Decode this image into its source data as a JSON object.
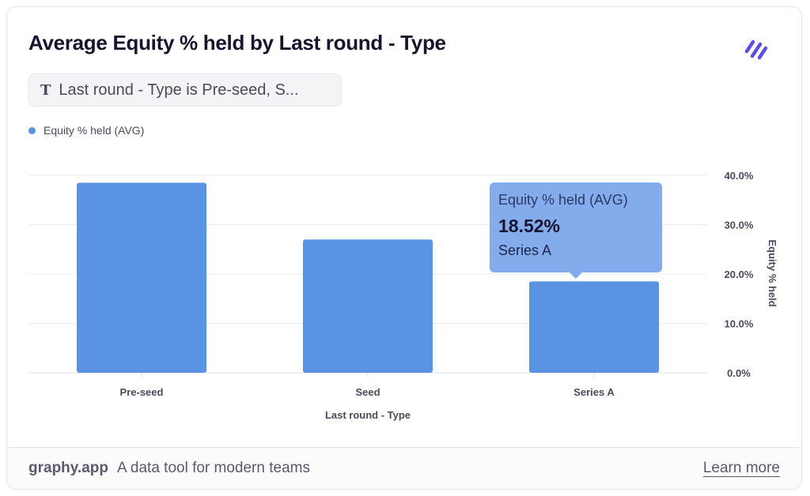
{
  "header": {
    "title": "Average Equity % held by Last round - Type"
  },
  "filter": {
    "icon": "text-type-icon",
    "icon_glyph": "T",
    "label": "Last round - Type is Pre-seed, S..."
  },
  "legend": {
    "label": "Equity % held (AVG)",
    "color": "#5b93e3"
  },
  "tooltip": {
    "series": "Equity % held (AVG)",
    "value": "18.52%",
    "category": "Series A"
  },
  "chart_data": {
    "type": "bar",
    "categories": [
      "Pre-seed",
      "Seed",
      "Series A"
    ],
    "series": [
      {
        "name": "Equity % held (AVG)",
        "values": [
          38.5,
          27.0,
          18.52
        ],
        "color": "#5b93e3"
      }
    ],
    "xlabel": "Last round - Type",
    "ylabel": "Equity % held",
    "ylim": [
      0,
      40
    ],
    "yticks": [
      "0.0%",
      "10.0%",
      "20.0%",
      "30.0%",
      "40.0%"
    ],
    "ytick_values": [
      0,
      10,
      20,
      30,
      40
    ],
    "y_axis_side": "right",
    "grid": true,
    "legend_position": "top-left"
  },
  "footer": {
    "brand": "graphy.app",
    "tagline": "A data tool for modern teams",
    "learn_more": "Learn more"
  }
}
